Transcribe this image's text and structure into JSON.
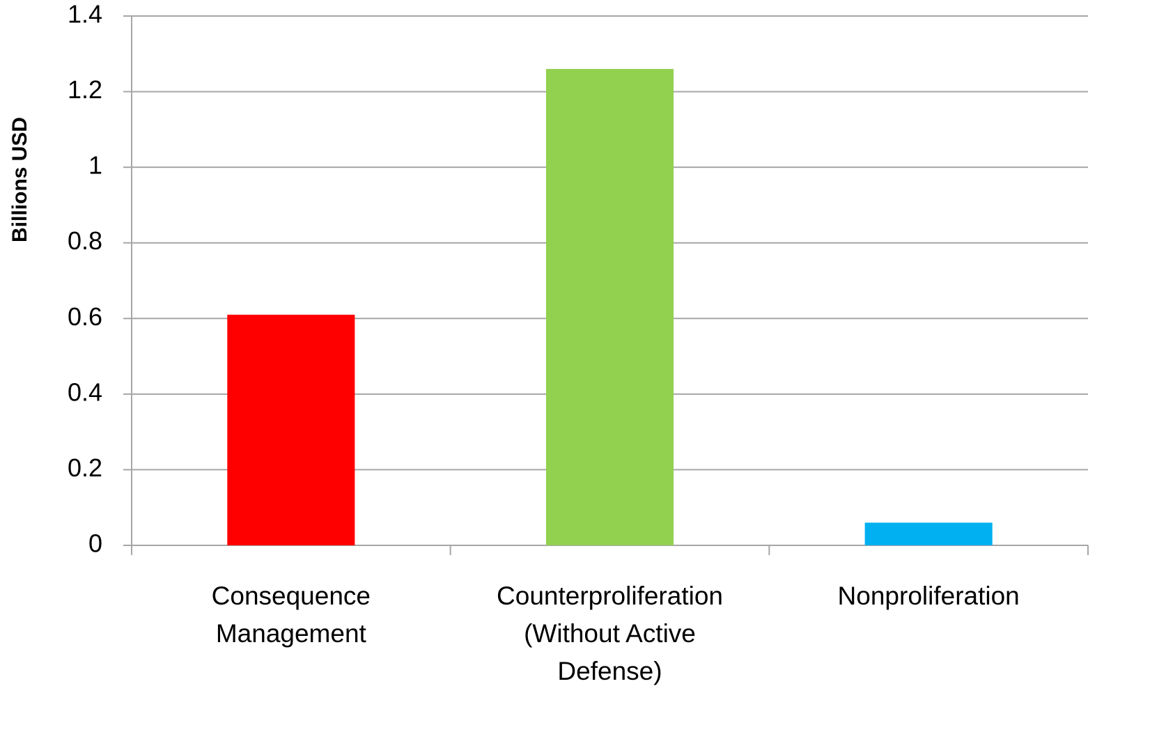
{
  "chart_data": {
    "type": "bar",
    "y_axis_label": "Billions USD",
    "categories": [
      "Consequence Management",
      "Counterproliferation (Without Active Defense)",
      "Nonproliferation"
    ],
    "values": [
      0.61,
      1.26,
      0.06
    ],
    "colors": [
      "#ff0000",
      "#92d050",
      "#00b0f0"
    ],
    "ylim": [
      0,
      1.4
    ],
    "yticks": [
      0,
      0.2,
      0.4,
      0.6,
      0.8,
      1,
      1.2,
      1.4
    ],
    "grid": true
  }
}
